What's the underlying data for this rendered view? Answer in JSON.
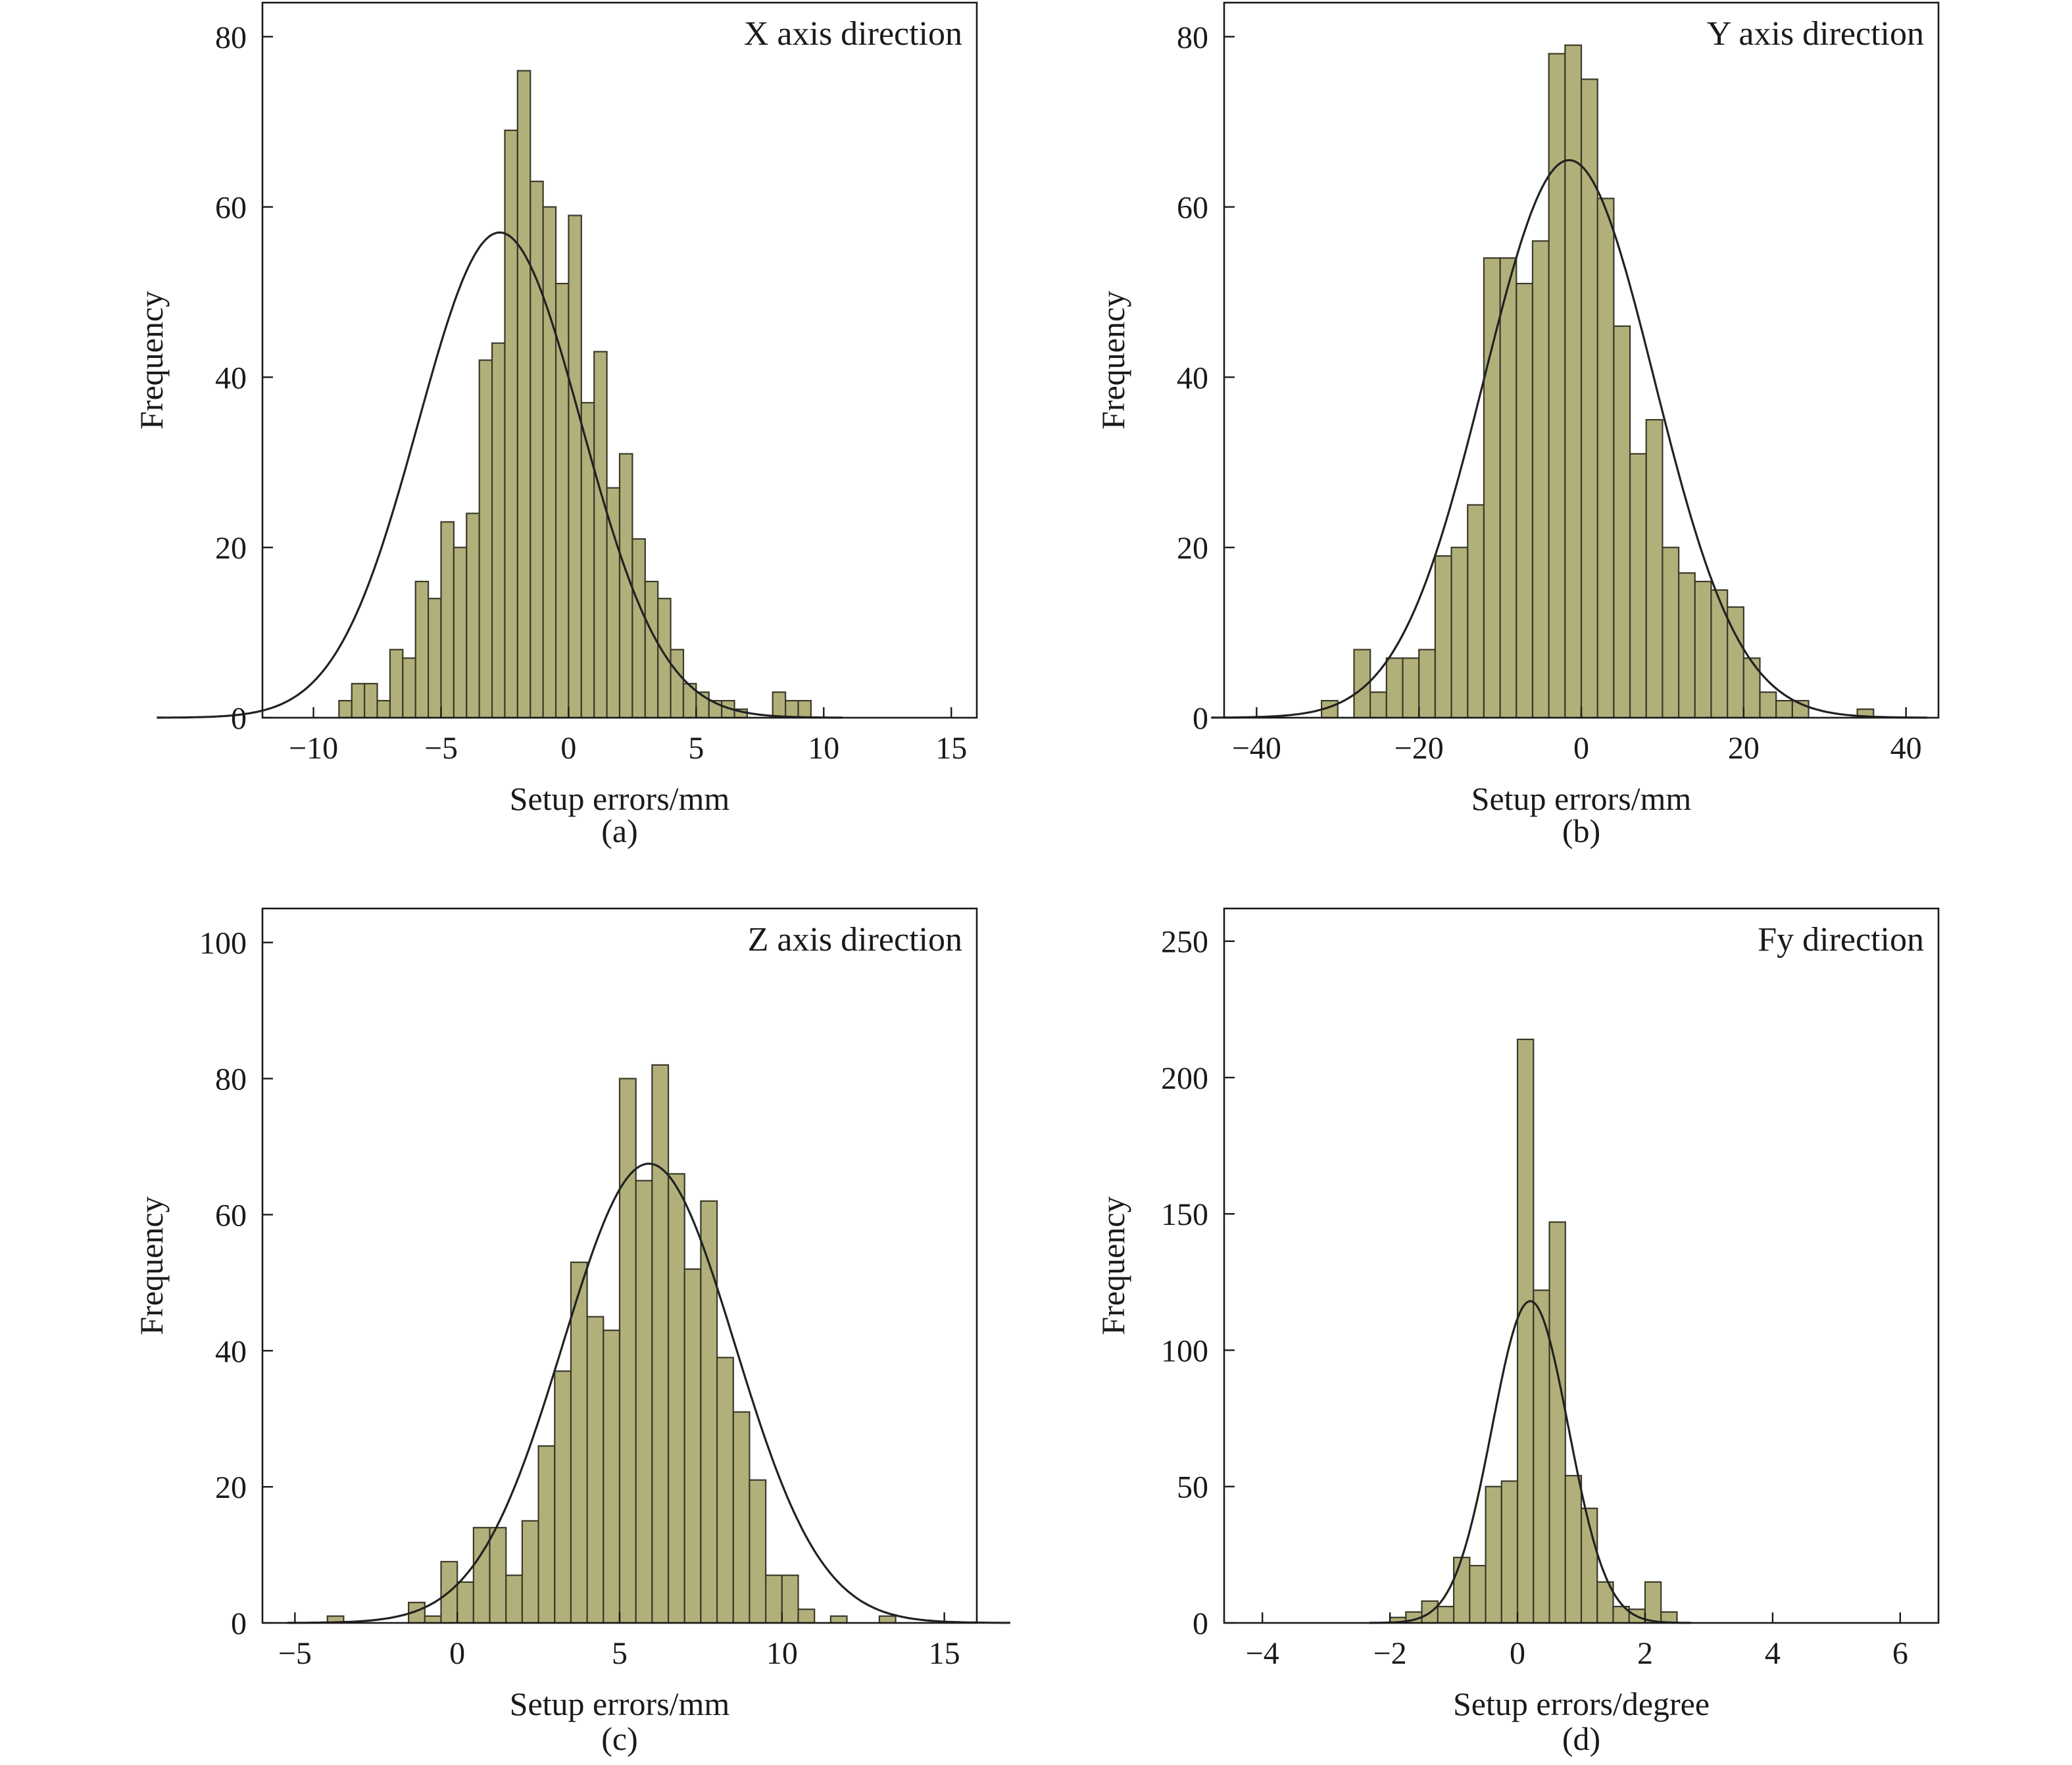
{
  "chart_data": [
    {
      "type": "bar",
      "panel_caption": "(a)",
      "annotation": "X axis direction",
      "title": "",
      "xlabel": "Setup errors/mm",
      "ylabel": "Frequency",
      "xlim": [
        -12,
        16
      ],
      "ylim": [
        0,
        84
      ],
      "xticks": [
        -10,
        -5,
        0,
        5,
        10,
        15
      ],
      "xtick_labels": [
        "−10",
        "−5",
        "0",
        "5",
        "10",
        "15"
      ],
      "yticks": [
        0,
        20,
        40,
        60,
        80
      ],
      "ytick_labels": [
        "0",
        "20",
        "40",
        "60",
        "80"
      ],
      "bin_start": -9.0,
      "bin_width": 0.5,
      "values": [
        2,
        4,
        4,
        2,
        8,
        7,
        16,
        14,
        23,
        20,
        24,
        42,
        44,
        69,
        76,
        63,
        60,
        51,
        59,
        37,
        43,
        27,
        31,
        21,
        16,
        14,
        8,
        4,
        3,
        2,
        2,
        1,
        0,
        0,
        3,
        2,
        2
      ],
      "fit": {
        "type": "normal",
        "mean": -2.7,
        "sd": 3.2,
        "peak": 57
      }
    },
    {
      "type": "bar",
      "panel_caption": "(b)",
      "annotation": "Y axis direction",
      "title": "",
      "xlabel": "Setup errors/mm",
      "ylabel": "Frequency",
      "xlim": [
        -44,
        44
      ],
      "ylim": [
        0,
        84
      ],
      "xticks": [
        -40,
        -20,
        0,
        20,
        40
      ],
      "xtick_labels": [
        "−40",
        "−20",
        "0",
        "20",
        "40"
      ],
      "yticks": [
        0,
        20,
        40,
        60,
        80
      ],
      "ytick_labels": [
        "0",
        "20",
        "40",
        "60",
        "80"
      ],
      "bin_start": -32.0,
      "bin_width": 2.0,
      "values": [
        2,
        0,
        8,
        3,
        7,
        7,
        8,
        19,
        20,
        25,
        54,
        54,
        51,
        56,
        78,
        79,
        75,
        61,
        46,
        31,
        35,
        20,
        17,
        16,
        15,
        13,
        7,
        3,
        2,
        2,
        0,
        0,
        0,
        1
      ],
      "fit": {
        "type": "normal",
        "mean": -1.5,
        "sd": 10.5,
        "peak": 65.5
      }
    },
    {
      "type": "bar",
      "panel_caption": "(c)",
      "annotation": "Z axis direction",
      "title": "",
      "xlabel": "Setup errors/mm",
      "ylabel": "Frequency",
      "xlim": [
        -6,
        16
      ],
      "ylim": [
        0,
        105
      ],
      "xticks": [
        -5,
        0,
        5,
        10,
        15
      ],
      "xtick_labels": [
        "−5",
        "0",
        "5",
        "10",
        "15"
      ],
      "yticks": [
        0,
        20,
        40,
        60,
        80,
        100
      ],
      "ytick_labels": [
        "0",
        "20",
        "40",
        "60",
        "80",
        "100"
      ],
      "bin_start": -1.5,
      "bin_width": 0.5,
      "values": [
        3,
        1,
        9,
        6,
        14,
        14,
        7,
        15,
        26,
        37,
        53,
        45,
        43,
        80,
        65,
        82,
        66,
        52,
        62,
        39,
        31,
        21,
        7,
        7,
        2,
        0,
        1,
        0,
        0,
        1
      ],
      "outliers": [
        {
          "x": -3.75,
          "value": 1
        }
      ],
      "fit": {
        "type": "normal",
        "mean": 5.9,
        "sd": 2.65,
        "peak": 67.5
      }
    },
    {
      "type": "bar",
      "panel_caption": "(d)",
      "annotation": "Fy direction",
      "title": "",
      "xlabel": "Setup errors/degree",
      "ylabel": "Frequency",
      "xlim": [
        -4.6,
        6.6
      ],
      "ylim": [
        0,
        262
      ],
      "xticks": [
        -4,
        -2,
        0,
        2,
        4,
        6
      ],
      "xtick_labels": [
        "−4",
        "−2",
        "0",
        "2",
        "4",
        "6"
      ],
      "yticks": [
        0,
        50,
        100,
        150,
        200,
        250
      ],
      "ytick_labels": [
        "0",
        "50",
        "100",
        "150",
        "200",
        "250"
      ],
      "bin_start": -2.0,
      "bin_width": 0.25,
      "values": [
        2,
        4,
        8,
        6,
        24,
        21,
        50,
        52,
        214,
        122,
        147,
        54,
        42,
        15,
        6,
        5,
        15,
        4
      ],
      "fit": {
        "type": "normal",
        "mean": 0.2,
        "sd": 0.6,
        "peak": 118
      }
    }
  ]
}
